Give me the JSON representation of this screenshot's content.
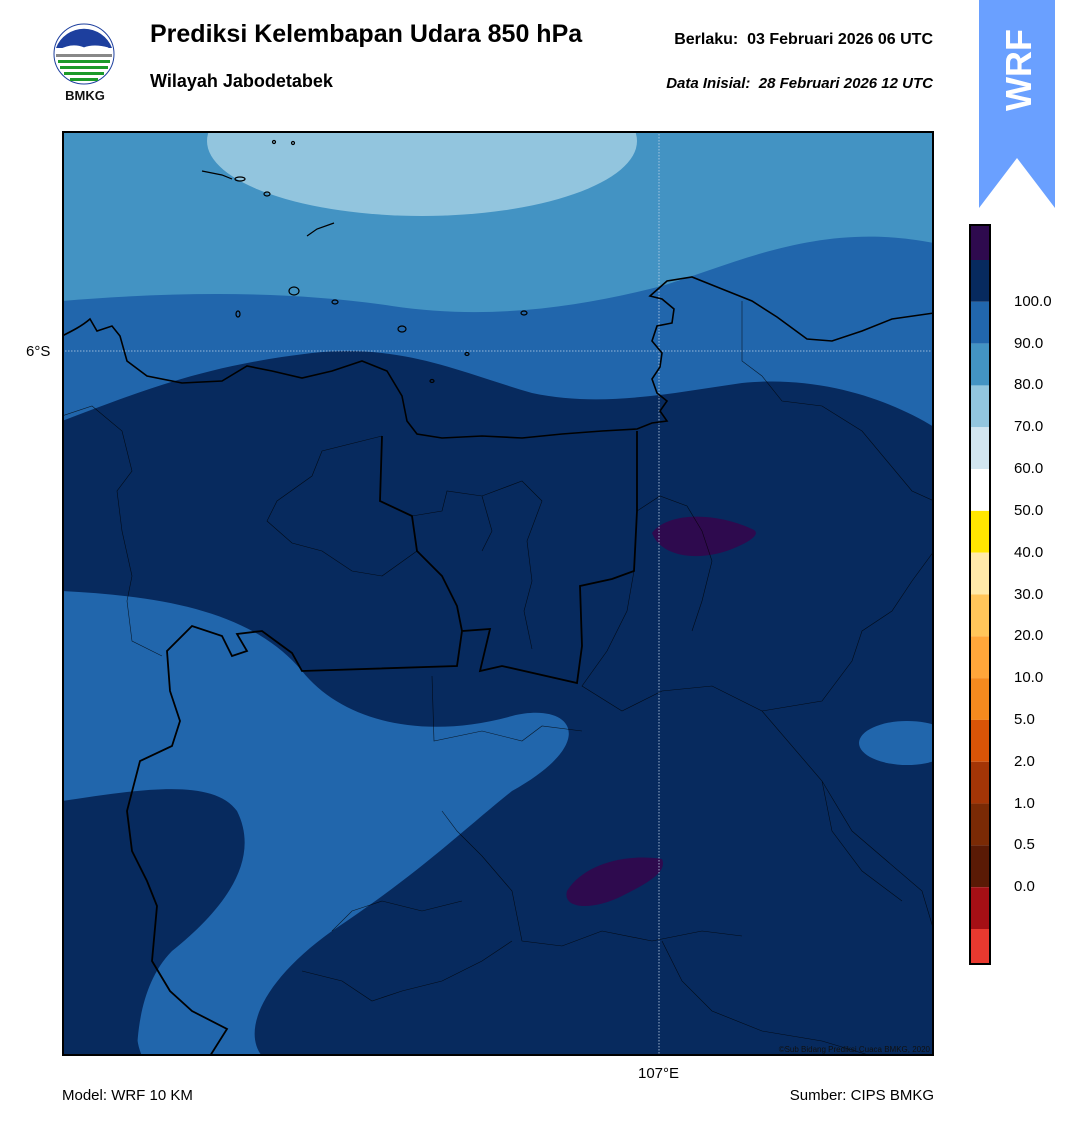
{
  "header": {
    "title": "Prediksi Kelembapan Udara 850 hPa",
    "subtitle": "Wilayah Jabodetabek",
    "valid_label": "Berlaku:",
    "valid_value": "03 Februari 2026 06 UTC",
    "init_label": "Data Inisial:",
    "init_value": "28 Februari 2026 12 UTC"
  },
  "logo": {
    "icon": "bmkg-logo-icon",
    "text": "BMKG"
  },
  "badge": {
    "text": "WRF",
    "color": "#6aa0ff"
  },
  "map": {
    "lat_label": "6°S",
    "lon_label": "107°E",
    "copyright": "©Sub Bidang Prediksi Cuaca BMKG, 2020"
  },
  "footer": {
    "model": "Model: WRF 10 KM",
    "source": "Sumber: CIPS BMKG"
  },
  "colorbar": {
    "ticks": [
      "100.0",
      "90.0",
      "80.0",
      "70.0",
      "60.0",
      "50.0",
      "40.0",
      "30.0",
      "20.0",
      "10.0",
      "5.0",
      "2.0",
      "1.0",
      "0.5",
      "0.0"
    ],
    "colors_top_to_bottom": [
      "#2e0a4e",
      "#072a5e",
      "#2166ac",
      "#4393c3",
      "#92c5de",
      "#d1e5f0",
      "#ffffff",
      "#ffe600",
      "#ffe9a8",
      "#ffc55a",
      "#ffa63a",
      "#f58a1e",
      "#d95407",
      "#a43506",
      "#7a2a05",
      "#5a1a05",
      "#a50f15",
      "#e8392f"
    ]
  },
  "palette": {
    "rh_90_100": "#072a5e",
    "rh_80_90": "#2166ac",
    "rh_70_80": "#4393c3",
    "rh_60_70": "#92c5de",
    "rh_above_100": "#2e0a4e"
  }
}
